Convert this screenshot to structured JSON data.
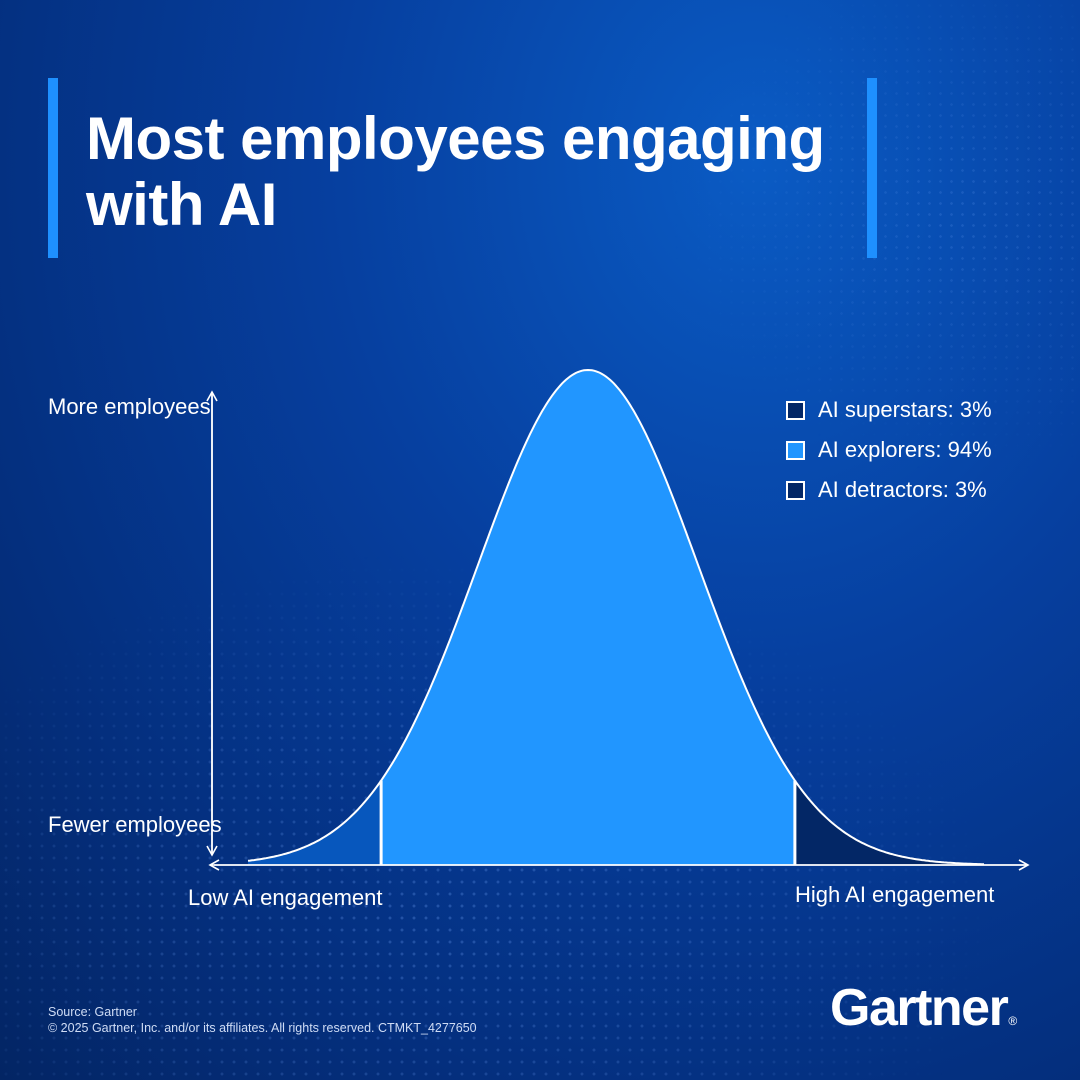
{
  "title": "Most employees engaging with AI",
  "colors": {
    "accent_bar": "#1e90ff",
    "explorers": "#2196ff",
    "detractors": "#0757bd",
    "superstars": "#032766",
    "outline": "#ffffff"
  },
  "chart_data": {
    "type": "area",
    "title": "Most employees engaging with AI",
    "xlabel_low": "Low AI engagement",
    "xlabel_high": "High AI engagement",
    "ylabel_high": "More employees",
    "ylabel_low": "Fewer employees",
    "distribution": "normal",
    "segments": [
      {
        "name": "AI detractors",
        "percent": 3,
        "position": "left tail"
      },
      {
        "name": "AI explorers",
        "percent": 94,
        "position": "center"
      },
      {
        "name": "AI superstars",
        "percent": 3,
        "position": "right tail"
      }
    ]
  },
  "legend": [
    {
      "label": "AI superstars: 3%",
      "color": "#032766"
    },
    {
      "label": "AI explorers: 94%",
      "color": "#2196ff"
    },
    {
      "label": "AI detractors: 3%",
      "color": "#032766"
    }
  ],
  "footer": {
    "source": "Source: Gartner",
    "copyright": "© 2025 Gartner, Inc. and/or its affiliates. All rights reserved. CTMKT_4277650"
  },
  "logo": {
    "text": "Gartner",
    "mark": "®"
  }
}
